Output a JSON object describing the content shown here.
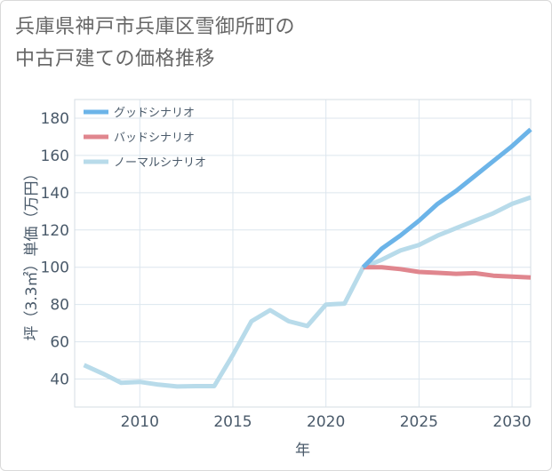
{
  "title_lines": [
    "兵庫県神戸市兵庫区雪御所町の",
    "中古戸建ての価格推移"
  ],
  "chart_data": {
    "type": "line",
    "xlabel": "年",
    "ylabel": "坪（3.3㎡）単価（万円）",
    "xlim": [
      2006.5,
      2031
    ],
    "ylim": [
      25,
      190
    ],
    "x_ticks": [
      2010,
      2015,
      2020,
      2025,
      2030
    ],
    "y_ticks": [
      40,
      60,
      80,
      100,
      120,
      140,
      160,
      180
    ],
    "grid": true,
    "legend_position": "top-left",
    "series": [
      {
        "name": "グッドシナリオ",
        "color": "#6cb4e8",
        "x": [
          2022,
          2023,
          2024,
          2025,
          2026,
          2027,
          2028,
          2029,
          2030,
          2031
        ],
        "y": [
          100,
          110,
          117,
          125,
          134,
          141,
          149,
          157,
          165,
          174
        ]
      },
      {
        "name": "バッドシナリオ",
        "color": "#e0868e",
        "x": [
          2022,
          2023,
          2024,
          2025,
          2026,
          2027,
          2028,
          2029,
          2030,
          2031
        ],
        "y": [
          100,
          100,
          99,
          97.5,
          97,
          96.5,
          96.8,
          95.5,
          95,
          94.5
        ]
      },
      {
        "name": "ノーマルシナリオ",
        "color": "#b8dbea",
        "x": [
          2007,
          2008,
          2009,
          2010,
          2011,
          2012,
          2013,
          2014,
          2015,
          2016,
          2017,
          2018,
          2019,
          2020,
          2021,
          2022,
          2023,
          2024,
          2025,
          2026,
          2027,
          2028,
          2029,
          2030,
          2031
        ],
        "y": [
          47.5,
          43,
          38,
          38.5,
          37,
          36,
          36.2,
          36.2,
          53,
          71,
          77,
          71,
          68.5,
          80,
          80.5,
          100,
          104,
          109,
          112,
          117,
          121,
          125,
          129,
          134,
          137.5
        ]
      }
    ]
  }
}
